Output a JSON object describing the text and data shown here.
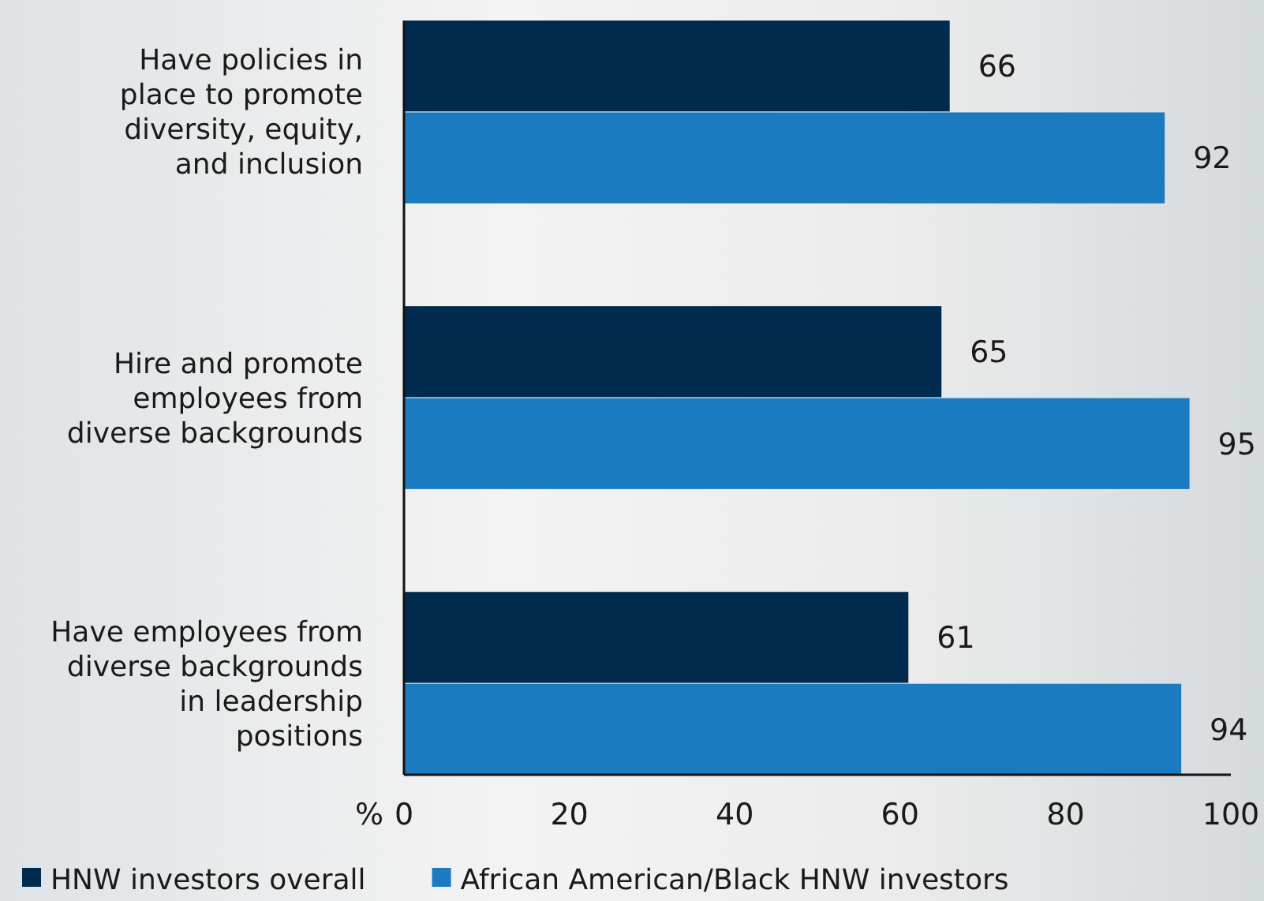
{
  "chart_data": {
    "type": "bar",
    "orientation": "horizontal",
    "xlabel": "%",
    "categories": [
      "Have policies in place to promote diversity, equity, and inclusion",
      "Hire and promote employees from diverse backgrounds",
      "Have employees from diverse backgrounds in leadership positions"
    ],
    "series": [
      {
        "name": "HNW investors overall",
        "color": "#002a4e",
        "values": [
          66,
          65,
          61
        ]
      },
      {
        "name": "African American/Black HNW investors",
        "color": "#1b7bc1",
        "values": [
          92,
          95,
          94
        ]
      }
    ],
    "xlim": [
      0,
      100
    ],
    "xticks": [
      0,
      20,
      40,
      60,
      80,
      100
    ],
    "data_labels": true,
    "grid": false,
    "legend": "bottom"
  }
}
